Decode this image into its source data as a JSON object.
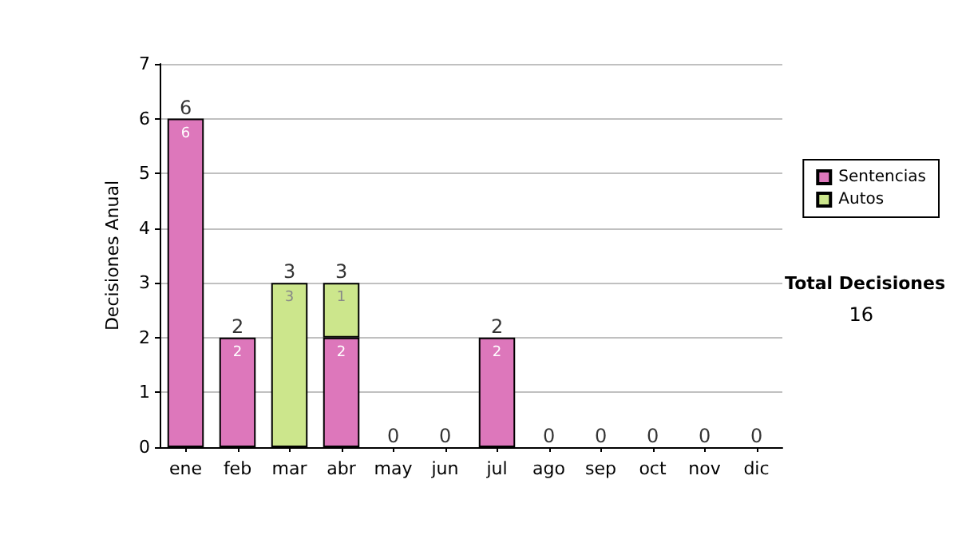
{
  "chart_data": {
    "type": "bar",
    "stacked": true,
    "ylabel": "Decisiones Anual",
    "categories": [
      "ene",
      "feb",
      "mar",
      "abr",
      "may",
      "jun",
      "jul",
      "ago",
      "sep",
      "oct",
      "nov",
      "dic"
    ],
    "series": [
      {
        "name": "Sentencias",
        "color": "#dd77bb",
        "values": [
          6,
          2,
          0,
          2,
          0,
          0,
          2,
          0,
          0,
          0,
          0,
          0
        ],
        "value_labels": [
          "6",
          "2",
          null,
          "2",
          null,
          null,
          "2",
          null,
          null,
          null,
          null,
          null
        ]
      },
      {
        "name": "Autos",
        "color": "#cce68c",
        "values": [
          0,
          0,
          3,
          1,
          0,
          0,
          0,
          0,
          0,
          0,
          0,
          0
        ],
        "value_labels": [
          null,
          null,
          "3",
          "1",
          null,
          null,
          null,
          null,
          null,
          null,
          null,
          null
        ]
      }
    ],
    "totals": [
      "6",
      "2",
      "3",
      "3",
      "0",
      "0",
      "2",
      "0",
      "0",
      "0",
      "0",
      "0"
    ],
    "ylim": [
      0,
      7
    ],
    "yticks": [
      0,
      1,
      2,
      3,
      4,
      5,
      6,
      7
    ],
    "grid": "y",
    "legend": "right",
    "annotations": [
      "Total Decisiones",
      "16"
    ]
  }
}
